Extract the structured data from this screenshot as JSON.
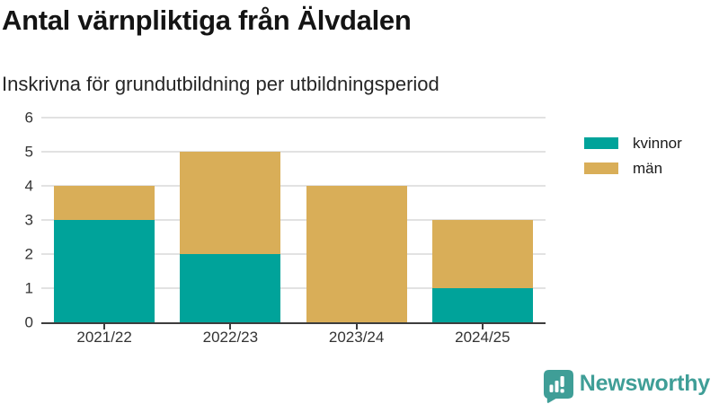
{
  "chart_data": {
    "type": "bar",
    "stacked": true,
    "title": "Antal värnpliktiga från Älvdalen",
    "subtitle": "Inskrivna för grundutbildning per utbildningsperiod",
    "categories": [
      "2021/22",
      "2022/23",
      "2023/24",
      "2024/25"
    ],
    "series": [
      {
        "name": "kvinnor",
        "color": "#00a39a",
        "values": [
          3,
          2,
          0,
          1
        ]
      },
      {
        "name": "män",
        "color": "#d9ae58",
        "values": [
          1,
          3,
          4,
          2
        ]
      }
    ],
    "xlabel": "",
    "ylabel": "",
    "ylim": [
      0,
      6
    ],
    "yticks": [
      0,
      1,
      2,
      3,
      4,
      5,
      6
    ],
    "grid": true,
    "gridline_color": "#e2e2e2",
    "axis_color": "#3d3d3d",
    "legend_position": "right"
  },
  "footer": {
    "brand": "Newsworthy",
    "brand_color": "#3f9e97"
  }
}
